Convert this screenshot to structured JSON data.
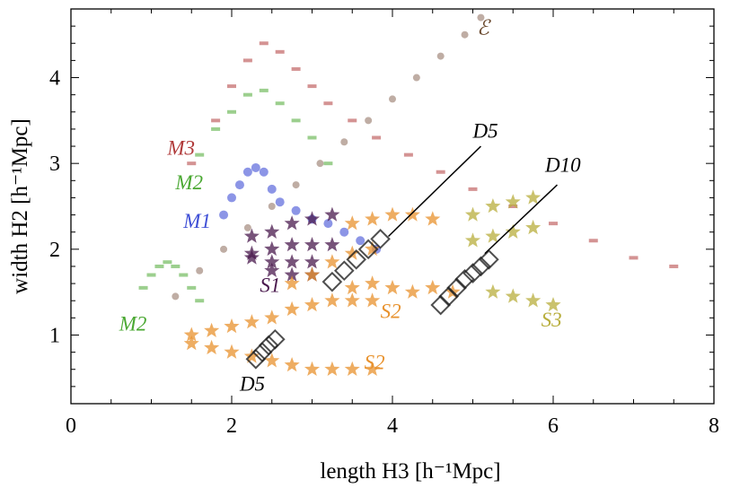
{
  "chart_data": {
    "type": "scatter",
    "xlabel": "length  H3  [h⁻¹Mpc]",
    "ylabel": "width  H2  [h⁻¹Mpc]",
    "xlim": [
      0,
      8
    ],
    "ylim": [
      0.2,
      4.8
    ],
    "xticks": [
      0,
      2,
      4,
      6,
      8
    ],
    "yticks": [
      1,
      2,
      3,
      4
    ],
    "grid": false,
    "colors": {
      "M3": "#b03a3a",
      "M2": "#4aa832",
      "M1": "#3f4fd6",
      "S1": "#4a1a4e",
      "S2": "#e8922e",
      "S3": "#b8ae3c",
      "D": "#222222",
      "E": "#6b4a2f"
    },
    "series": [
      {
        "name": "E",
        "marker": "circle-small",
        "color": "#8a6a5a",
        "x": [
          1.3,
          1.6,
          1.9,
          2.2,
          2.5,
          2.8,
          3.1,
          3.4,
          3.7,
          4.0,
          4.3,
          4.6,
          4.9,
          5.1
        ],
        "y": [
          1.45,
          1.75,
          2.0,
          2.25,
          2.5,
          2.75,
          3.0,
          3.25,
          3.5,
          3.75,
          4.0,
          4.25,
          4.5,
          4.7
        ]
      },
      {
        "name": "M3",
        "marker": "dash",
        "color": "#b03a3a",
        "x": [
          1.5,
          1.8,
          2.0,
          2.2,
          2.4,
          2.6,
          2.8,
          3.0,
          3.2,
          3.5,
          3.8,
          4.2,
          4.6,
          5.0,
          5.5,
          6.0,
          6.5,
          7.0,
          7.5
        ],
        "y": [
          3.0,
          3.5,
          3.9,
          4.2,
          4.4,
          4.3,
          4.1,
          3.9,
          3.7,
          3.5,
          3.3,
          3.1,
          2.9,
          2.7,
          2.5,
          2.3,
          2.1,
          1.9,
          1.8
        ]
      },
      {
        "name": "M2",
        "marker": "dash",
        "color": "#4aa832",
        "x": [
          1.6,
          1.8,
          2.0,
          2.2,
          2.4,
          2.6,
          2.8,
          3.0,
          3.2,
          0.9,
          1.0,
          1.1,
          1.2,
          1.3,
          1.4,
          1.5,
          1.6
        ],
        "y": [
          3.1,
          3.4,
          3.6,
          3.8,
          3.85,
          3.7,
          3.5,
          3.3,
          3.0,
          1.55,
          1.7,
          1.8,
          1.85,
          1.8,
          1.7,
          1.55,
          1.4
        ]
      },
      {
        "name": "M1",
        "marker": "circle",
        "color": "#3f4fd6",
        "x": [
          1.9,
          2.0,
          2.1,
          2.2,
          2.3,
          2.4,
          2.5,
          2.6,
          2.8,
          3.0,
          3.2,
          3.4,
          3.6,
          3.8
        ],
        "y": [
          2.4,
          2.6,
          2.75,
          2.9,
          2.95,
          2.9,
          2.7,
          2.55,
          2.45,
          2.35,
          2.3,
          2.2,
          2.1,
          2.0
        ]
      },
      {
        "name": "S1",
        "marker": "star",
        "color": "#4a1a4e",
        "x": [
          2.25,
          2.5,
          2.75,
          3.0,
          3.25,
          2.25,
          2.5,
          2.75,
          3.0,
          3.25,
          2.25,
          2.5,
          2.75,
          3.0,
          2.5,
          2.75,
          3.0
        ],
        "y": [
          2.15,
          2.2,
          2.3,
          2.35,
          2.4,
          1.95,
          2.0,
          2.05,
          2.05,
          2.05,
          1.9,
          1.85,
          1.85,
          1.85,
          1.75,
          1.7,
          1.7
        ]
      },
      {
        "name": "S2",
        "marker": "star",
        "color": "#e8922e",
        "x": [
          1.5,
          1.75,
          2.0,
          2.25,
          2.5,
          2.75,
          3.0,
          3.25,
          3.5,
          3.75,
          1.5,
          1.75,
          2.0,
          2.25,
          2.5,
          2.75,
          3.0,
          3.25,
          3.5,
          3.75,
          2.75,
          3.0,
          3.25,
          3.5,
          3.75,
          3.5,
          3.75,
          4.0,
          4.25,
          4.5,
          3.5,
          3.75,
          4.0,
          4.25,
          4.5,
          4.75
        ],
        "y": [
          1.0,
          1.05,
          1.1,
          1.15,
          1.2,
          1.3,
          1.35,
          1.4,
          1.4,
          1.4,
          0.9,
          0.85,
          0.8,
          0.75,
          0.7,
          0.65,
          0.6,
          0.6,
          0.6,
          0.6,
          1.6,
          1.7,
          1.85,
          1.95,
          2.0,
          2.3,
          2.35,
          2.4,
          2.4,
          2.35,
          1.55,
          1.6,
          1.55,
          1.5,
          1.55,
          1.5
        ]
      },
      {
        "name": "S3",
        "marker": "star",
        "color": "#b8ae3c",
        "x": [
          5.0,
          5.25,
          5.5,
          5.75,
          5.0,
          5.25,
          5.5,
          5.75,
          5.25,
          5.5,
          5.75,
          6.0
        ],
        "y": [
          2.4,
          2.5,
          2.55,
          2.6,
          2.1,
          2.15,
          2.2,
          2.25,
          1.5,
          1.45,
          1.4,
          1.35
        ]
      },
      {
        "name": "D5",
        "marker": "square-smear",
        "color": "#222222",
        "x": [
          3.25,
          3.4,
          3.55,
          3.7,
          3.85,
          2.3,
          2.38,
          2.46,
          2.54
        ],
        "y": [
          1.62,
          1.75,
          1.88,
          2.0,
          2.12,
          0.72,
          0.8,
          0.88,
          0.95
        ]
      },
      {
        "name": "D10",
        "marker": "square-smear",
        "color": "#222222",
        "x": [
          4.6,
          4.7,
          4.8,
          4.9,
          5.0,
          5.1,
          5.2
        ],
        "y": [
          1.35,
          1.45,
          1.55,
          1.65,
          1.72,
          1.8,
          1.88
        ]
      }
    ],
    "annotations": [
      {
        "text": "ℰ",
        "x": 5.05,
        "y": 4.5,
        "color": "#6b4a2f"
      },
      {
        "text": "M3",
        "x": 1.2,
        "y": 3.1,
        "color": "#b03a3a"
      },
      {
        "text": "M2",
        "x": 1.3,
        "y": 2.7,
        "color": "#4aa832"
      },
      {
        "text": "M1",
        "x": 1.4,
        "y": 2.25,
        "color": "#3f4fd6"
      },
      {
        "text": "M2",
        "x": 0.6,
        "y": 1.05,
        "color": "#4aa832"
      },
      {
        "text": "S1",
        "x": 2.35,
        "y": 1.5,
        "color": "#4a1a4e"
      },
      {
        "text": "S2",
        "x": 3.85,
        "y": 1.2,
        "color": "#e8922e"
      },
      {
        "text": "S2",
        "x": 3.65,
        "y": 0.6,
        "color": "#e8922e"
      },
      {
        "text": "S3",
        "x": 5.85,
        "y": 1.1,
        "color": "#b8ae3c"
      },
      {
        "text": "D5",
        "x": 2.1,
        "y": 0.35,
        "color": "#000000"
      },
      {
        "text": "D5",
        "x": 5.0,
        "y": 3.3,
        "color": "#000000"
      },
      {
        "text": "D10",
        "x": 5.9,
        "y": 2.9,
        "color": "#000000"
      }
    ],
    "leader_lines": [
      {
        "from": [
          5.1,
          3.2
        ],
        "to": [
          3.95,
          2.15
        ]
      },
      {
        "from": [
          6.05,
          2.75
        ],
        "to": [
          5.15,
          1.95
        ]
      }
    ]
  }
}
